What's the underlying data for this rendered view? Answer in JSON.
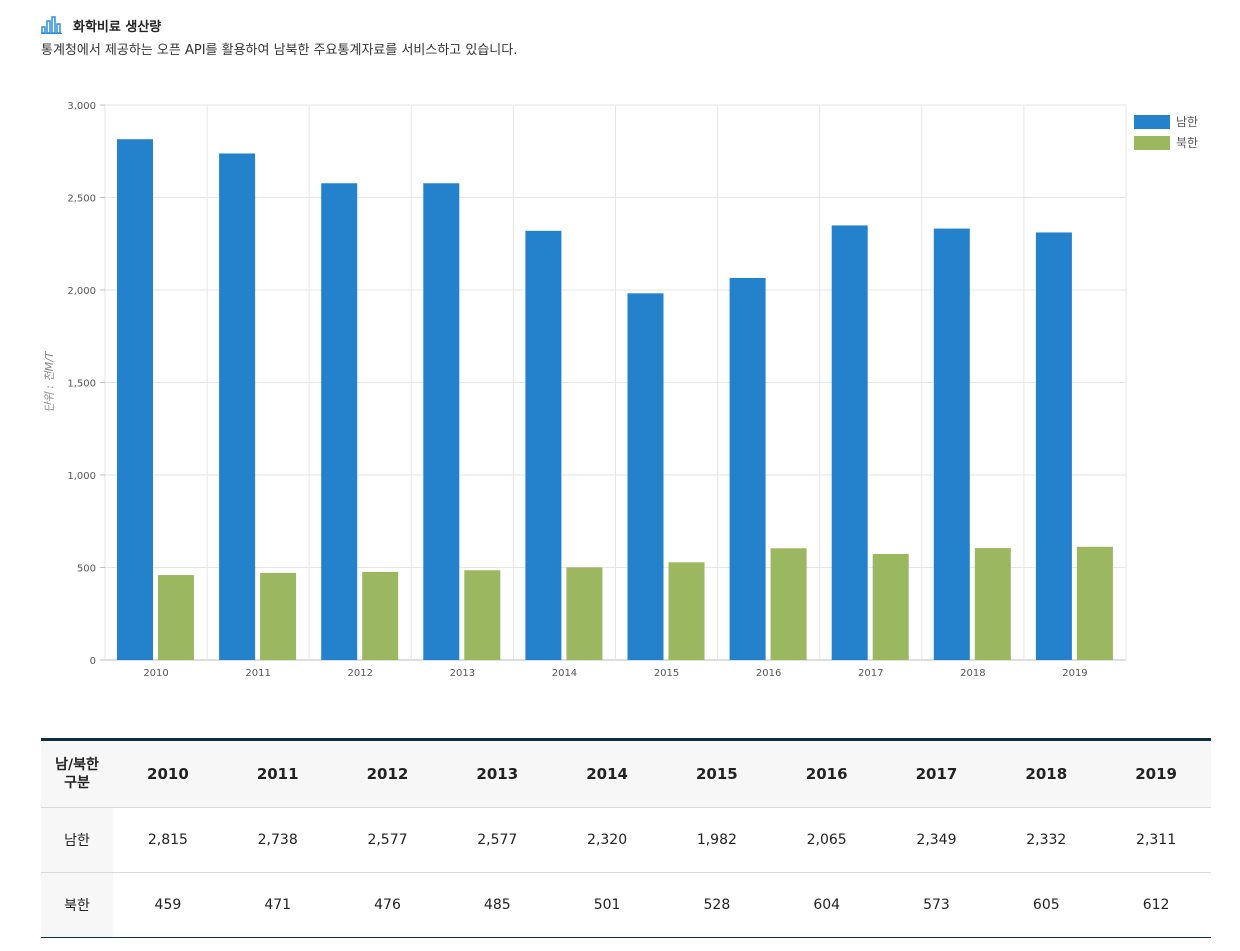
{
  "header": {
    "title": "화학비료 생산량",
    "subtitle": "통계청에서 제공하는 오픈 API를 활용하여 남북한 주요통계자료를 서비스하고 있습니다."
  },
  "colors": {
    "south": "#2382cb",
    "north": "#9bb760",
    "header_border": "#0d3142"
  },
  "chart_data": {
    "type": "bar",
    "title": "",
    "xlabel": "",
    "ylabel": "단위 : 천M/T",
    "categories": [
      "2010",
      "2011",
      "2012",
      "2013",
      "2014",
      "2015",
      "2016",
      "2017",
      "2018",
      "2019"
    ],
    "series": [
      {
        "name": "남한",
        "values": [
          2815,
          2738,
          2577,
          2577,
          2320,
          1982,
          2065,
          2349,
          2332,
          2311
        ]
      },
      {
        "name": "북한",
        "values": [
          459,
          471,
          476,
          485,
          501,
          528,
          604,
          573,
          605,
          612
        ]
      }
    ],
    "ylim": [
      0,
      3000
    ],
    "yticks": [
      0,
      500,
      1000,
      1500,
      2000,
      2500,
      3000
    ],
    "ytick_labels": [
      "0",
      "500",
      "1,000",
      "1,500",
      "2,000",
      "2,500",
      "3,000"
    ],
    "grid": true,
    "legend_position": "top-right"
  },
  "table": {
    "corner_label_line1": "남/북한",
    "corner_label_line2": "구분",
    "columns": [
      "2010",
      "2011",
      "2012",
      "2013",
      "2014",
      "2015",
      "2016",
      "2017",
      "2018",
      "2019"
    ],
    "rows": [
      {
        "label": "남한",
        "values": [
          "2,815",
          "2,738",
          "2,577",
          "2,577",
          "2,320",
          "1,982",
          "2,065",
          "2,349",
          "2,332",
          "2,311"
        ]
      },
      {
        "label": "북한",
        "values": [
          "459",
          "471",
          "476",
          "485",
          "501",
          "528",
          "604",
          "573",
          "605",
          "612"
        ]
      }
    ]
  }
}
